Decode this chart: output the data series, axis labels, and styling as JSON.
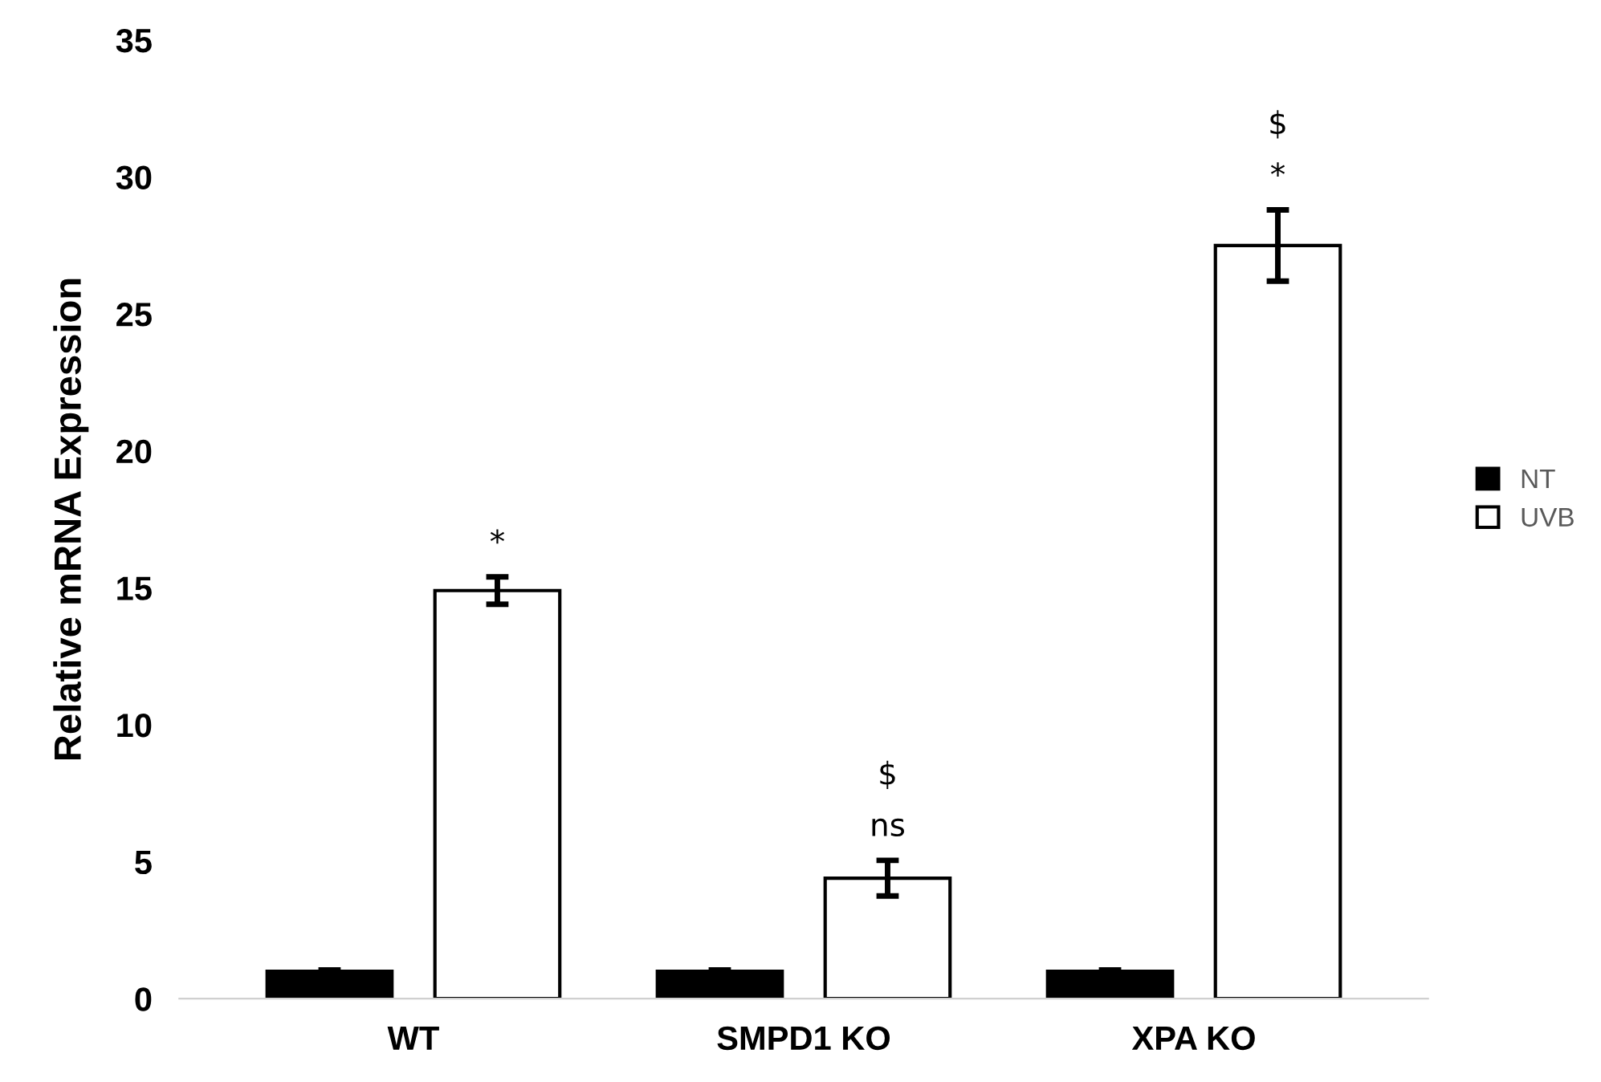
{
  "chart_data": {
    "type": "bar",
    "ylabel": "Relative mRNA Expression",
    "categories": [
      "WT",
      "SMPD1 KO",
      "XPA KO"
    ],
    "series": [
      {
        "name": "NT",
        "color": "#000000",
        "values": [
          1.0,
          1.0,
          1.0
        ],
        "errors": [
          0.05,
          0.05,
          0.05
        ]
      },
      {
        "name": "UVB",
        "color": "#ffffff",
        "values": [
          14.9,
          4.4,
          27.5
        ],
        "errors": [
          0.5,
          0.65,
          1.3
        ],
        "value_labels": [
          "*",
          "$\nns",
          "$\n*"
        ]
      }
    ],
    "ylim": [
      0,
      35
    ],
    "yticks": [
      0,
      5,
      10,
      15,
      20,
      25,
      30,
      35
    ],
    "grid": false,
    "legend": "right"
  }
}
